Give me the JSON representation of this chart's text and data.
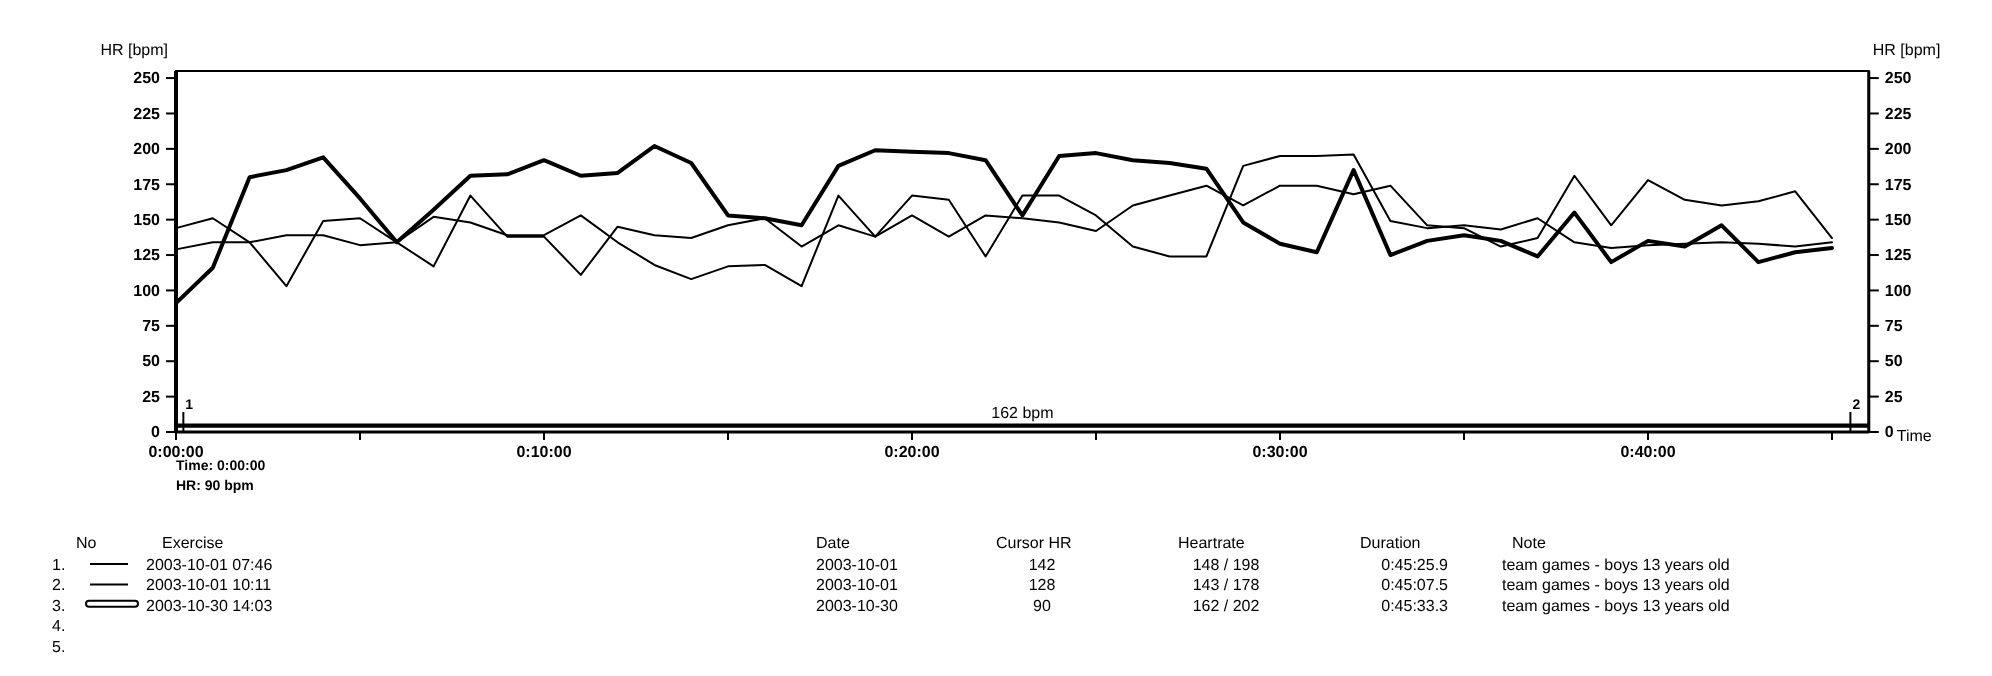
{
  "chart_data": {
    "type": "line",
    "ylabel": "HR [bpm]",
    "y2label": "HR [bpm]",
    "xlabel": "Time",
    "xlim": [
      0,
      46
    ],
    "xticks": [
      {
        "value": 0,
        "label": "0:00:00"
      },
      {
        "value": 5,
        "label": null
      },
      {
        "value": 10,
        "label": "0:10:00"
      },
      {
        "value": 15,
        "label": null
      },
      {
        "value": 20,
        "label": "0:20:00"
      },
      {
        "value": 25,
        "label": null
      },
      {
        "value": 30,
        "label": "0:30:00"
      },
      {
        "value": 35,
        "label": null
      },
      {
        "value": 40,
        "label": "0:40:00"
      },
      {
        "value": 45,
        "label": null
      }
    ],
    "ylim": [
      0,
      255
    ],
    "yticks": [
      0,
      25,
      50,
      75,
      100,
      125,
      150,
      175,
      200,
      225,
      250
    ],
    "y2lim": [
      0,
      255
    ],
    "y2ticks": [
      0,
      25,
      50,
      75,
      100,
      125,
      150,
      175,
      200,
      225,
      250
    ],
    "x": [
      0,
      1,
      2,
      3,
      4,
      5,
      6,
      7,
      8,
      9,
      10,
      11,
      12,
      13,
      14,
      15,
      16,
      17,
      18,
      19,
      20,
      21,
      22,
      23,
      24,
      25,
      26,
      27,
      28,
      29,
      30,
      31,
      32,
      33,
      34,
      35,
      36,
      37,
      38,
      39,
      40,
      41,
      42,
      43,
      44,
      45
    ],
    "series": [
      {
        "name": "2003-10-01 07:46",
        "color": "#000000",
        "values": [
          144,
          151,
          134,
          103,
          149,
          151,
          134,
          117,
          167,
          138,
          138,
          111,
          145,
          139,
          137,
          146,
          151,
          131,
          146,
          138,
          153,
          138,
          153,
          151,
          148,
          142,
          160,
          167,
          174,
          160,
          174,
          174,
          168,
          174,
          146,
          144,
          131,
          137,
          181,
          146,
          178,
          164,
          160,
          163,
          170,
          137
        ]
      },
      {
        "name": "2003-10-01 10:11",
        "color": "#000000",
        "values": [
          129,
          134,
          134,
          139,
          139,
          132,
          134,
          152,
          148,
          139,
          139,
          153,
          134,
          118,
          108,
          117,
          118,
          103,
          167,
          138,
          167,
          164,
          124,
          167,
          167,
          153,
          131,
          124,
          124,
          188,
          195,
          195,
          196,
          149,
          144,
          146,
          143,
          151,
          134,
          130,
          132,
          133,
          134,
          133,
          131,
          134
        ]
      },
      {
        "name": "2003-10-30 14:03",
        "color": "#000000",
        "values": [
          91,
          116,
          180,
          185,
          194,
          165,
          134,
          157,
          181,
          182,
          192,
          181,
          183,
          202,
          190,
          153,
          151,
          146,
          188,
          199,
          198,
          197,
          192,
          153,
          195,
          197,
          192,
          190,
          186,
          148,
          133,
          127,
          185,
          125,
          135,
          139,
          135,
          124,
          155,
          120,
          135,
          131,
          146,
          120,
          127,
          130
        ]
      }
    ],
    "bands": [
      {
        "axis": "y",
        "from": 3,
        "to": 6,
        "label": "162 bpm",
        "color": "#000000"
      }
    ],
    "legend": "bottom",
    "annotations": [
      "Time: 0:00:00",
      "HR: 90 bpm",
      "No",
      "Exercise",
      "Date",
      "Cursor HR",
      "Heartrate",
      "Duration",
      "Note",
      "1.",
      "2.",
      "3.",
      "4.",
      "5.",
      "2003-10-01",
      "142",
      "148 / 198",
      "0:45:25.9",
      "team games - boys 13 years old",
      "2003-10-01",
      "128",
      "143 / 178",
      "0:45:07.5",
      "team games - boys 13 years old",
      "2003-10-30",
      "90",
      "162 / 202",
      "0:45:33.3",
      "team games - boys 13 years old",
      {
        "text": "1",
        "x": 0.2,
        "y": 12
      },
      {
        "text": "2",
        "x": 45.5,
        "y": 12
      }
    ]
  }
}
